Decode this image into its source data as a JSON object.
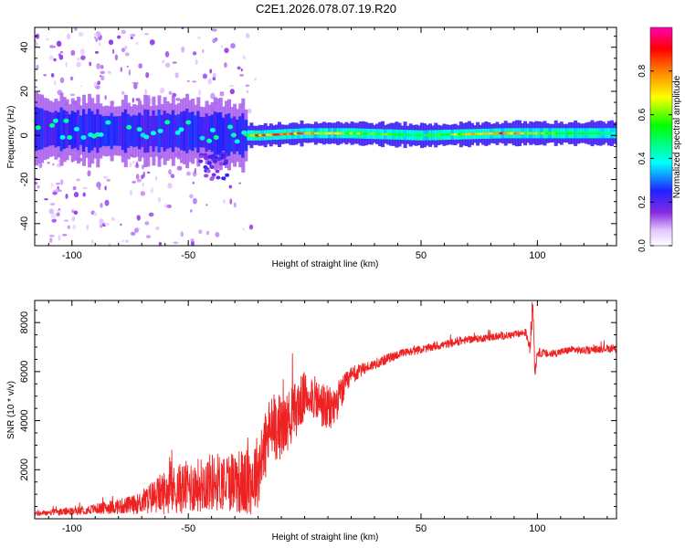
{
  "figure": {
    "title": "C2E1.2026.078.07.19.R20"
  },
  "chart_data": [
    {
      "type": "heatmap",
      "name": "spectrogram",
      "xlabel": "Height of straight line (km)",
      "ylabel": "Frequency (Hz)",
      "xlim": [
        -116,
        134
      ],
      "ylim": [
        -50,
        49
      ],
      "xticks": [
        -100,
        -50,
        50,
        100
      ],
      "xticklabels": [
        "-100",
        "-50",
        "50",
        "100"
      ],
      "yticks": [
        -40,
        -20,
        0,
        20,
        40
      ],
      "yticklabels": [
        "-40",
        "-20",
        "0",
        "20",
        "40"
      ],
      "colorbar": {
        "label": "Normalized spectral amplitude",
        "range": [
          0,
          1
        ],
        "ticks": [
          0,
          0.2,
          0.4,
          0.6,
          0.8
        ],
        "ticklabels": [
          "0.0",
          "0.2",
          "0.4",
          "0.6",
          "0.8"
        ],
        "colors": [
          "#ffffff",
          "#d9b8ff",
          "#8a2be2",
          "#2020ff",
          "#00ffff",
          "#00ff00",
          "#ffff00",
          "#ff8000",
          "#ff0000",
          "#ff00b0"
        ]
      },
      "ridge": {
        "description": "narrow band centered near 0 Hz",
        "centers": [
          {
            "x": -110,
            "f": 3,
            "amp": 0.35
          },
          {
            "x": -90,
            "f": 2,
            "amp": 0.4
          },
          {
            "x": -70,
            "f": 2,
            "amp": 0.4
          },
          {
            "x": -50,
            "f": 2,
            "amp": 0.35
          },
          {
            "x": -30,
            "f": 0,
            "amp": 0.3
          },
          {
            "x": -20,
            "f": 0,
            "amp": 0.9
          },
          {
            "x": 0,
            "f": 1,
            "amp": 0.9
          },
          {
            "x": 20,
            "f": 1,
            "amp": 0.7
          },
          {
            "x": 50,
            "f": 0,
            "amp": 0.55
          },
          {
            "x": 85,
            "f": 1,
            "amp": 0.9
          },
          {
            "x": 110,
            "f": 1,
            "amp": 0.6
          },
          {
            "x": 134,
            "f": 1,
            "amp": 0.5
          }
        ]
      }
    },
    {
      "type": "line",
      "name": "snr",
      "xlabel": "Height of straight line (km)",
      "ylabel": "SNR (10 * v/v)",
      "xlim": [
        -116,
        134
      ],
      "ylim": [
        0,
        8900
      ],
      "xticks": [
        -100,
        -50,
        50,
        100
      ],
      "xticklabels": [
        "-100",
        "-50",
        "50",
        "100"
      ],
      "yticks": [
        2000,
        4000,
        6000,
        8000
      ],
      "yticklabels": [
        "2000",
        "4000",
        "6000",
        "8000"
      ],
      "color": "#ee2222",
      "series": [
        {
          "name": "SNR",
          "x": [
            -116,
            -110,
            -100,
            -90,
            -80,
            -72,
            -65,
            -60,
            -55,
            -50,
            -45,
            -40,
            -35,
            -30,
            -25,
            -22,
            -20,
            -18,
            -15,
            -12,
            -10,
            -8,
            -5,
            -2,
            0,
            3,
            5,
            8,
            10,
            12,
            15,
            18,
            20,
            25,
            30,
            35,
            40,
            45,
            50,
            55,
            60,
            65,
            70,
            75,
            80,
            85,
            90,
            95,
            97,
            98,
            99,
            100,
            105,
            110,
            115,
            120,
            125,
            130,
            134
          ],
          "y": [
            200,
            250,
            300,
            400,
            500,
            600,
            900,
            1100,
            1200,
            1300,
            1400,
            1500,
            1500,
            1600,
            1400,
            1700,
            2000,
            2600,
            3600,
            3800,
            3700,
            3900,
            4300,
            4700,
            5000,
            5100,
            4800,
            4600,
            4400,
            4500,
            5000,
            5500,
            5800,
            6100,
            6300,
            6500,
            6700,
            6800,
            6900,
            7000,
            7100,
            7200,
            7300,
            7350,
            7400,
            7450,
            7500,
            7600,
            7000,
            8900,
            6000,
            6800,
            6700,
            6800,
            6900,
            6850,
            6900,
            6950,
            6900
          ],
          "noise": [
            100,
            120,
            150,
            200,
            300,
            400,
            700,
            900,
            1000,
            1100,
            1100,
            1200,
            1200,
            1300,
            1400,
            1500,
            1500,
            1500,
            1400,
            1400,
            1300,
            1200,
            1200,
            1100,
            1000,
            900,
            900,
            1000,
            1000,
            900,
            700,
            500,
            400,
            250,
            200,
            200,
            180,
            170,
            160,
            160,
            160,
            160,
            150,
            150,
            150,
            150,
            150,
            150,
            400,
            500,
            300,
            180,
            160,
            150,
            150,
            150,
            150,
            150,
            150
          ]
        }
      ]
    }
  ]
}
